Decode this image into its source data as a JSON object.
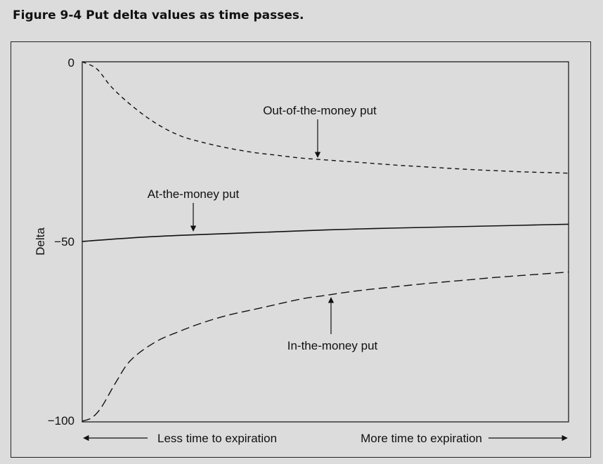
{
  "figure": {
    "title": "Figure 9-4  Put delta values as time passes."
  },
  "chart_data": {
    "type": "line",
    "ylabel": "Delta",
    "ylim": [
      -100,
      0
    ],
    "yticks": [
      "0",
      "−50",
      "−100"
    ],
    "xlim": [
      0,
      1
    ],
    "x_left_label": "Less time to expiration",
    "x_right_label": "More time to expiration",
    "series": [
      {
        "name": "Out-of-the-money put",
        "style": "dashed-short",
        "x": [
          0,
          0.03,
          0.06,
          0.1,
          0.15,
          0.2,
          0.25,
          0.3,
          0.35,
          0.4,
          0.45,
          0.5,
          0.55,
          0.6,
          0.65,
          0.7,
          0.75,
          0.8,
          0.85,
          0.9,
          0.95,
          1.0
        ],
        "y": [
          0,
          -2,
          -7,
          -12,
          -17,
          -20.5,
          -22.5,
          -24,
          -25.2,
          -26,
          -26.8,
          -27.3,
          -27.8,
          -28.3,
          -28.8,
          -29.2,
          -29.6,
          -30,
          -30.3,
          -30.6,
          -30.8,
          -31
        ]
      },
      {
        "name": "At-the-money put",
        "style": "solid",
        "x": [
          0,
          0.1,
          0.2,
          0.3,
          0.4,
          0.5,
          0.6,
          0.7,
          0.8,
          0.9,
          1.0
        ],
        "y": [
          -50,
          -49,
          -48.3,
          -47.8,
          -47.3,
          -46.8,
          -46.4,
          -46.1,
          -45.8,
          -45.5,
          -45.2
        ]
      },
      {
        "name": "In-the-money put",
        "style": "dashed-long",
        "x": [
          0,
          0.02,
          0.04,
          0.07,
          0.1,
          0.15,
          0.2,
          0.25,
          0.3,
          0.35,
          0.4,
          0.45,
          0.5,
          0.55,
          0.6,
          0.65,
          0.7,
          0.75,
          0.8,
          0.85,
          0.9,
          0.95,
          1.0
        ],
        "y": [
          -100,
          -99,
          -96,
          -89,
          -83,
          -78,
          -75,
          -72.5,
          -70.5,
          -69,
          -67.5,
          -66,
          -65,
          -64,
          -63.2,
          -62.5,
          -61.8,
          -61.2,
          -60.6,
          -60,
          -59.5,
          -59,
          -58.5
        ]
      }
    ],
    "annotations": [
      {
        "text": "Out-of-the-money put",
        "series": 0
      },
      {
        "text": "At-the-money put",
        "series": 1
      },
      {
        "text": "In-the-money put",
        "series": 2
      }
    ]
  }
}
